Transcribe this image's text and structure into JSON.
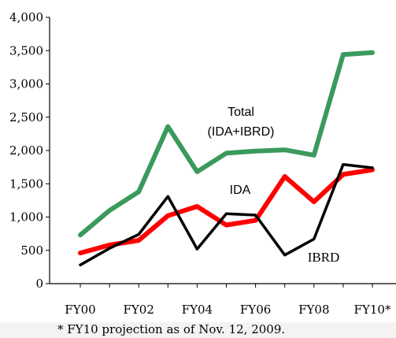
{
  "chart_data": {
    "type": "line",
    "x": [
      "FY00",
      "FY01",
      "FY02",
      "FY03",
      "FY04",
      "FY05",
      "FY06",
      "FY07",
      "FY08",
      "FY09",
      "FY10*"
    ],
    "x_tick_labels": [
      "FY00",
      "FY02",
      "FY04",
      "FY06",
      "FY08",
      "FY10*"
    ],
    "ylim": [
      0,
      4000
    ],
    "y_ticks": [
      "0",
      "500",
      "1,000",
      "1,500",
      "2,000",
      "2,500",
      "3,000",
      "3,500",
      "4,000"
    ],
    "grid": false,
    "series": [
      {
        "name": "Total (IDA+IBRD)",
        "color": "#3a9a5c",
        "values": [
          730,
          1100,
          1380,
          2360,
          1680,
          1960,
          1990,
          2010,
          1930,
          3440,
          3470
        ]
      },
      {
        "name": "IDA",
        "color": "#ff0000",
        "values": [
          460,
          580,
          650,
          1020,
          1160,
          880,
          950,
          1610,
          1230,
          1640,
          1710
        ]
      },
      {
        "name": "IBRD",
        "color": "#000000",
        "values": [
          280,
          530,
          740,
          1310,
          520,
          1050,
          1030,
          430,
          670,
          1790,
          1740
        ]
      }
    ],
    "annotations": {
      "total_line1": "Total",
      "total_line2": "(IDA+IBRD)",
      "ida": "IDA",
      "ibrd": "IBRD"
    },
    "footnote": "* FY10 projection as of Nov. 12, 2009."
  }
}
